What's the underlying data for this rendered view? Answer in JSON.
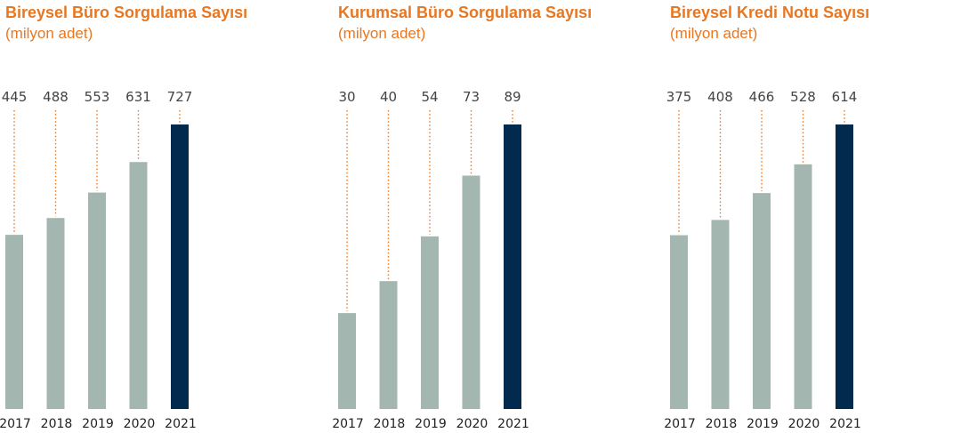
{
  "colors": {
    "title": "#e87722",
    "bar_default": "#a3b6b0",
    "bar_highlight": "#022a4f",
    "leader": "#e87722",
    "text": "#444444"
  },
  "chart_data": [
    {
      "type": "bar",
      "title": "Bireysel Büro Sorgulama Sayısı",
      "subtitle": "(milyon adet)",
      "categories": [
        "2017",
        "2018",
        "2019",
        "2020",
        "2021"
      ],
      "values": [
        445,
        488,
        553,
        631,
        727
      ],
      "highlight_category": "2021",
      "legend": "none",
      "grid": false
    },
    {
      "type": "bar",
      "title": "Kurumsal Büro Sorgulama Sayısı",
      "subtitle": "(milyon adet)",
      "categories": [
        "2017",
        "2018",
        "2019",
        "2020",
        "2021"
      ],
      "values": [
        30,
        40,
        54,
        73,
        89
      ],
      "highlight_category": "2021",
      "legend": "none",
      "grid": false
    },
    {
      "type": "bar",
      "title": "Bireysel Kredi Notu Sayısı",
      "subtitle": "(milyon adet)",
      "categories": [
        "2017",
        "2018",
        "2019",
        "2020",
        "2021"
      ],
      "values": [
        375,
        408,
        466,
        528,
        614
      ],
      "highlight_category": "2021",
      "legend": "none",
      "grid": false
    }
  ]
}
